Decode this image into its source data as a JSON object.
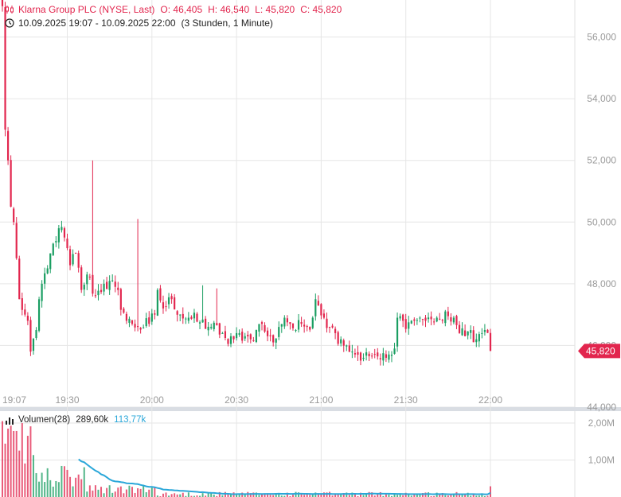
{
  "header": {
    "name": "Klarna Group PLC (NYSE, Last)",
    "open": "O: 46,405",
    "high": "H: 46,540",
    "low": "L: 45,820",
    "close": "C: 45,820",
    "range": "10.09.2025 19:07 - 10.09.2025 22:00",
    "interval": "(3 Stunden, 1 Minute)"
  },
  "volume_header": {
    "label": "Volumen(28)",
    "value": "289,60k",
    "ma_value": "113,77k"
  },
  "last_price_label": "45,820",
  "colors": {
    "up": "#1a9e62",
    "down": "#e2264e",
    "ma": "#2aa7d9",
    "grid": "#e6e6e6",
    "axis_text": "#9a9a9a"
  },
  "chart_data": {
    "type": "candlestick",
    "title": "Klarna Group PLC (NYSE, Last)",
    "x_ticks": [
      "19:07",
      "19:30",
      "20:00",
      "20:30",
      "21:00",
      "21:30",
      "22:00"
    ],
    "x_tick_minutes": [
      0,
      23,
      53,
      83,
      113,
      143,
      173
    ],
    "y_ticks": [
      44000,
      46000,
      48000,
      50000,
      52000,
      54000,
      56000
    ],
    "y_tick_labels": [
      "44,000",
      "46,000",
      "48,000",
      "50,000",
      "52,000",
      "54,000",
      "56,000"
    ],
    "ylim": [
      44000,
      57200
    ],
    "last_price": 45820,
    "anchors": [
      [
        0,
        57000
      ],
      [
        1,
        53000
      ],
      [
        2,
        52000
      ],
      [
        3,
        50500
      ],
      [
        4,
        50000
      ],
      [
        6,
        47500
      ],
      [
        8,
        47000
      ],
      [
        9,
        46800
      ],
      [
        10,
        45800
      ],
      [
        12,
        46500
      ],
      [
        14,
        48000
      ],
      [
        16,
        48500
      ],
      [
        18,
        49300
      ],
      [
        20,
        49800
      ],
      [
        22,
        49500
      ],
      [
        24,
        48600
      ],
      [
        26,
        49000
      ],
      [
        28,
        47800
      ],
      [
        30,
        48300
      ],
      [
        33,
        47600
      ],
      [
        36,
        48000
      ],
      [
        40,
        47900
      ],
      [
        44,
        46800
      ],
      [
        46,
        46700
      ],
      [
        48,
        46600
      ],
      [
        52,
        46700
      ],
      [
        54,
        47000
      ],
      [
        55,
        47800
      ],
      [
        57,
        47200
      ],
      [
        60,
        47500
      ],
      [
        63,
        47000
      ],
      [
        66,
        46900
      ],
      [
        70,
        46750
      ],
      [
        74,
        46600
      ],
      [
        78,
        46400
      ],
      [
        80,
        46050
      ],
      [
        82,
        46200
      ],
      [
        84,
        46400
      ],
      [
        86,
        46300
      ],
      [
        88,
        46200
      ],
      [
        90,
        46500
      ],
      [
        92,
        46700
      ],
      [
        94,
        46300
      ],
      [
        96,
        46100
      ],
      [
        98,
        46600
      ],
      [
        100,
        46900
      ],
      [
        102,
        46700
      ],
      [
        104,
        46500
      ],
      [
        106,
        46700
      ],
      [
        108,
        46600
      ],
      [
        110,
        46900
      ],
      [
        111,
        47500
      ],
      [
        112,
        47300
      ],
      [
        114,
        46900
      ],
      [
        116,
        46600
      ],
      [
        118,
        46400
      ],
      [
        120,
        46200
      ],
      [
        122,
        46000
      ],
      [
        124,
        45800
      ],
      [
        126,
        45700
      ],
      [
        128,
        45600
      ],
      [
        130,
        45650
      ],
      [
        132,
        45700
      ],
      [
        134,
        45550
      ],
      [
        136,
        45600
      ],
      [
        138,
        45700
      ],
      [
        139,
        45900
      ],
      [
        140,
        46900
      ],
      [
        142,
        46800
      ],
      [
        144,
        46750
      ],
      [
        146,
        46800
      ],
      [
        148,
        46900
      ],
      [
        150,
        46800
      ],
      [
        152,
        46850
      ],
      [
        154,
        46900
      ],
      [
        156,
        46800
      ],
      [
        158,
        46950
      ],
      [
        160,
        46900
      ],
      [
        162,
        46400
      ],
      [
        164,
        46300
      ],
      [
        166,
        46500
      ],
      [
        168,
        46200
      ],
      [
        170,
        46400
      ],
      [
        171,
        46500
      ],
      [
        172,
        46405
      ],
      [
        173,
        45820
      ]
    ],
    "spikes": [
      [
        1,
        55500
      ],
      [
        32,
        52000
      ],
      [
        48,
        50100
      ],
      [
        71,
        47950
      ],
      [
        76,
        47850
      ],
      [
        160,
        46950
      ]
    ],
    "volume": {
      "ylim": [
        0,
        2300000
      ],
      "y_ticks": [
        1000000,
        2000000
      ],
      "y_tick_labels": [
        "1,00M",
        "2,00M"
      ],
      "series_name": "Volumen(28)",
      "ma_name": "MA",
      "last_volume": 289600,
      "last_ma": 113770
    }
  }
}
